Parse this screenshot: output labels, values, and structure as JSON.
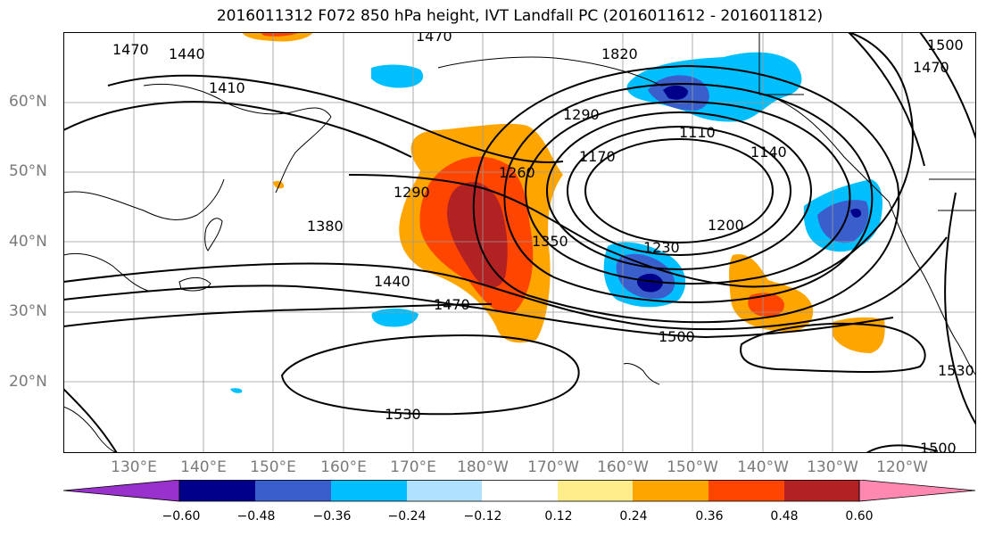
{
  "title": "2016011312 F072 850 hPa height, IVT Landfall PC (2016011612 - 2016011812)",
  "latitude_labels": [
    "60°N",
    "50°N",
    "40°N",
    "30°N",
    "20°N"
  ],
  "longitude_labels": [
    "130°E",
    "140°E",
    "150°E",
    "160°E",
    "170°E",
    "180°W",
    "170°W",
    "160°W",
    "150°W",
    "140°W",
    "130°W",
    "120°W"
  ],
  "contour_labels": [
    "1470",
    "1440",
    "1470",
    "1820",
    "1500",
    "1470",
    "1410",
    "1290",
    "1170",
    "1110",
    "1140",
    "1290",
    "1260",
    "1380",
    "1200",
    "1230",
    "1350",
    "1440",
    "1470",
    "1500",
    "1530",
    "1530",
    "1500"
  ],
  "colorbar": {
    "ticks": [
      "−0.60",
      "−0.48",
      "−0.36",
      "−0.24",
      "−0.12",
      "0.12",
      "0.24",
      "0.36",
      "0.48",
      "0.60"
    ],
    "colors": [
      "#9932CC",
      "#00008B",
      "#3A5FCD",
      "#00BFFF",
      "#B0E2FF",
      "#FFFFFF",
      "#FFEC8B",
      "#FFA500",
      "#FF4500",
      "#B22222",
      "#FF88B0"
    ]
  }
}
